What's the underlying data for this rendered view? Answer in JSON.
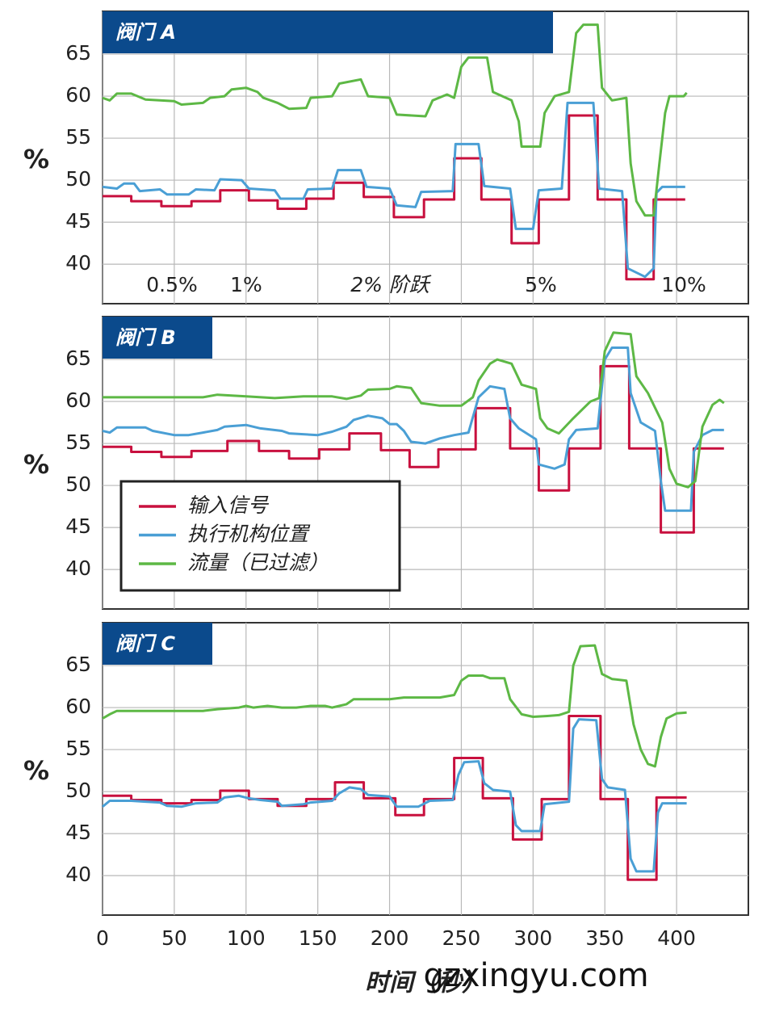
{
  "chart_data": [
    {
      "type": "line",
      "title": "阀门 A",
      "y_label": "%",
      "xlim": [
        0,
        450
      ],
      "ylim": [
        35.3,
        70.1
      ],
      "xticks": [
        0,
        50,
        100,
        150,
        200,
        250,
        300,
        350,
        400
      ],
      "yticks": [
        40,
        45,
        50,
        55,
        60,
        65
      ],
      "grid": true,
      "annotations": [
        "0.5%",
        "1%",
        "2% 阶跃",
        "5%",
        "10%"
      ],
      "series": [
        {
          "color": "#c8103e",
          "x": [
            0,
            20,
            20,
            41,
            41,
            62,
            62,
            82,
            82,
            102,
            102,
            122,
            122,
            142,
            142,
            161,
            161,
            182,
            182,
            203,
            203,
            224,
            224,
            245,
            245,
            264,
            264,
            285,
            285,
            304,
            304,
            325,
            325,
            345,
            345,
            365,
            365,
            384,
            384,
            406
          ],
          "values": [
            48.1,
            48.1,
            47.5,
            47.5,
            46.9,
            46.9,
            47.5,
            47.5,
            48.8,
            48.8,
            47.6,
            47.6,
            46.6,
            46.6,
            47.8,
            47.8,
            49.7,
            49.7,
            48.0,
            48.0,
            45.6,
            45.6,
            47.7,
            47.7,
            52.6,
            52.6,
            47.7,
            47.7,
            42.5,
            42.5,
            47.7,
            47.7,
            57.7,
            57.7,
            47.7,
            47.7,
            38.2,
            38.2,
            47.7,
            47.7
          ]
        },
        {
          "color": "#4a9fd5",
          "x": [
            0,
            10,
            15,
            22,
            26,
            40,
            45,
            60,
            65,
            78,
            82,
            97,
            102,
            120,
            124,
            140,
            143,
            160,
            164,
            180,
            184,
            200,
            205,
            218,
            222,
            244,
            246,
            262,
            266,
            284,
            288,
            300,
            304,
            320,
            324,
            342,
            346,
            362,
            366,
            378,
            384,
            386,
            390,
            406
          ],
          "values": [
            49.2,
            49.0,
            49.6,
            49.6,
            48.7,
            48.9,
            48.3,
            48.3,
            48.9,
            48.8,
            50.1,
            50.0,
            49.0,
            48.8,
            47.8,
            47.8,
            48.9,
            49.0,
            51.2,
            51.2,
            49.2,
            49.0,
            47.0,
            46.8,
            48.6,
            48.7,
            54.3,
            54.3,
            49.3,
            49.0,
            44.2,
            44.2,
            48.8,
            49.0,
            59.2,
            59.2,
            49.0,
            48.7,
            39.5,
            38.5,
            39.5,
            48.5,
            49.2,
            49.2
          ]
        },
        {
          "color": "#5db845",
          "x": [
            0,
            5,
            10,
            20,
            30,
            50,
            55,
            70,
            75,
            85,
            90,
            100,
            108,
            112,
            122,
            130,
            142,
            145,
            160,
            165,
            180,
            185,
            200,
            205,
            225,
            230,
            240,
            245,
            250,
            255,
            268,
            272,
            285,
            290,
            292,
            305,
            308,
            315,
            325,
            330,
            335,
            345,
            348,
            355,
            365,
            368,
            372,
            378,
            384,
            388,
            392,
            395,
            405,
            407
          ],
          "values": [
            59.8,
            59.5,
            60.3,
            60.3,
            59.6,
            59.4,
            59.0,
            59.2,
            59.8,
            60.0,
            60.8,
            61.0,
            60.5,
            59.8,
            59.2,
            58.5,
            58.6,
            59.8,
            60.0,
            61.5,
            62.0,
            60.0,
            59.8,
            57.8,
            57.6,
            59.5,
            60.2,
            59.8,
            63.5,
            64.6,
            64.6,
            60.5,
            59.5,
            57.0,
            54.0,
            54.0,
            58.0,
            60.0,
            60.5,
            67.5,
            68.5,
            68.5,
            61.0,
            59.5,
            59.8,
            52.0,
            47.5,
            45.8,
            45.8,
            52.0,
            58.0,
            60.0,
            60.0,
            60.4
          ]
        }
      ]
    },
    {
      "type": "line",
      "title": "阀门 B",
      "y_label": "%",
      "xlim": [
        0,
        450
      ],
      "ylim": [
        35.3,
        70.1
      ],
      "xticks": [
        0,
        50,
        100,
        150,
        200,
        250,
        300,
        350,
        400
      ],
      "yticks": [
        40,
        45,
        50,
        55,
        60,
        65
      ],
      "grid": true,
      "legend": true,
      "series": [
        {
          "name": "输入信号",
          "color": "#c8103e",
          "x": [
            0,
            20,
            20,
            41,
            41,
            62,
            62,
            87,
            87,
            109,
            109,
            130,
            130,
            151,
            151,
            172,
            172,
            194,
            194,
            214,
            214,
            234,
            234,
            260,
            260,
            284,
            284,
            304,
            304,
            325,
            325,
            347,
            347,
            367,
            367,
            389,
            389,
            412,
            412,
            433
          ],
          "values": [
            54.6,
            54.6,
            54.0,
            54.0,
            53.4,
            53.4,
            54.1,
            54.1,
            55.3,
            55.3,
            54.1,
            54.1,
            53.2,
            53.2,
            54.3,
            54.3,
            56.2,
            56.2,
            54.2,
            54.2,
            52.2,
            52.2,
            54.3,
            54.3,
            59.2,
            59.2,
            54.4,
            54.4,
            49.4,
            49.4,
            54.4,
            54.4,
            64.2,
            64.2,
            54.4,
            54.4,
            44.4,
            44.4,
            54.4,
            54.4
          ]
        },
        {
          "name": "执行机构位置",
          "color": "#4a9fd5",
          "x": [
            0,
            5,
            10,
            30,
            35,
            50,
            60,
            70,
            80,
            85,
            100,
            110,
            125,
            130,
            150,
            160,
            170,
            175,
            185,
            195,
            200,
            205,
            210,
            215,
            225,
            235,
            245,
            255,
            262,
            270,
            280,
            284,
            290,
            302,
            304,
            315,
            322,
            325,
            330,
            345,
            350,
            355,
            366,
            368,
            375,
            385,
            389,
            392,
            410,
            412,
            418,
            425,
            433
          ],
          "values": [
            56.5,
            56.3,
            56.9,
            56.9,
            56.5,
            56.0,
            56.0,
            56.3,
            56.6,
            57.0,
            57.2,
            56.8,
            56.5,
            56.2,
            56.0,
            56.4,
            57.0,
            57.8,
            58.3,
            58.0,
            57.3,
            57.3,
            56.5,
            55.2,
            55.0,
            55.6,
            56.0,
            56.3,
            60.5,
            61.8,
            61.5,
            58.0,
            56.8,
            55.5,
            52.5,
            52.0,
            52.5,
            55.5,
            56.6,
            56.8,
            65.0,
            66.4,
            66.4,
            61.0,
            57.5,
            56.5,
            50.5,
            47.0,
            47.0,
            54.0,
            56.0,
            56.6,
            56.6
          ]
        },
        {
          "name": "流量（已过滤）",
          "color": "#5db845",
          "x": [
            0,
            70,
            80,
            100,
            120,
            140,
            160,
            170,
            180,
            185,
            200,
            205,
            215,
            222,
            235,
            250,
            258,
            262,
            270,
            275,
            285,
            292,
            302,
            305,
            310,
            318,
            328,
            340,
            346,
            350,
            356,
            368,
            372,
            380,
            390,
            395,
            400,
            408,
            413,
            418,
            425,
            430,
            433
          ],
          "values": [
            60.5,
            60.5,
            60.8,
            60.6,
            60.4,
            60.6,
            60.6,
            60.3,
            60.7,
            61.4,
            61.5,
            61.8,
            61.6,
            59.8,
            59.5,
            59.5,
            60.5,
            62.5,
            64.5,
            65.0,
            64.5,
            62.0,
            61.5,
            58.0,
            56.8,
            56.2,
            58.0,
            60.0,
            60.4,
            66.0,
            68.2,
            68.0,
            63.0,
            61.0,
            57.5,
            52.0,
            50.2,
            49.8,
            50.5,
            57.0,
            59.6,
            60.2,
            59.8
          ]
        }
      ]
    },
    {
      "type": "line",
      "title": "阀门 C",
      "y_label": "%",
      "x_label": "时间（秒）",
      "xlim": [
        0,
        450
      ],
      "ylim": [
        35.3,
        70.1
      ],
      "xticks": [
        0,
        50,
        100,
        150,
        200,
        250,
        300,
        350,
        400
      ],
      "yticks": [
        40,
        45,
        50,
        55,
        60,
        65
      ],
      "grid": true,
      "show_xticks": true,
      "series": [
        {
          "color": "#c8103e",
          "x": [
            0,
            20,
            20,
            41,
            41,
            62,
            62,
            82,
            82,
            102,
            102,
            122,
            122,
            142,
            142,
            162,
            162,
            182,
            182,
            204,
            204,
            224,
            224,
            245,
            245,
            265,
            265,
            286,
            286,
            306,
            306,
            325,
            325,
            347,
            347,
            366,
            366,
            386,
            386,
            407
          ],
          "values": [
            49.5,
            49.5,
            49.0,
            49.0,
            48.6,
            48.6,
            49.0,
            49.0,
            50.1,
            50.1,
            49.1,
            49.1,
            48.3,
            48.3,
            49.1,
            49.1,
            51.1,
            51.1,
            49.2,
            49.2,
            47.2,
            47.2,
            49.1,
            49.1,
            54.0,
            54.0,
            49.2,
            49.2,
            44.3,
            44.3,
            49.1,
            49.1,
            59.0,
            59.0,
            49.1,
            49.1,
            39.5,
            39.5,
            49.3,
            49.3
          ]
        },
        {
          "color": "#4a9fd5",
          "x": [
            0,
            5,
            20,
            30,
            40,
            45,
            55,
            60,
            65,
            80,
            85,
            95,
            102,
            110,
            122,
            125,
            140,
            145,
            160,
            165,
            172,
            180,
            185,
            200,
            205,
            220,
            228,
            244,
            248,
            252,
            262,
            266,
            272,
            284,
            288,
            292,
            305,
            308,
            325,
            328,
            332,
            344,
            348,
            352,
            364,
            368,
            372,
            384,
            387,
            390,
            407
          ],
          "values": [
            48.2,
            48.9,
            48.9,
            48.8,
            48.7,
            48.3,
            48.2,
            48.4,
            48.6,
            48.7,
            49.3,
            49.5,
            49.2,
            49.0,
            48.8,
            48.3,
            48.5,
            48.7,
            48.9,
            49.8,
            50.5,
            50.3,
            49.6,
            49.4,
            48.2,
            48.2,
            48.9,
            49.0,
            52.0,
            53.5,
            53.6,
            51.0,
            50.2,
            50.0,
            46.0,
            45.3,
            45.3,
            48.5,
            48.8,
            57.5,
            58.6,
            58.5,
            51.5,
            50.5,
            50.2,
            42.0,
            40.5,
            40.5,
            47.5,
            48.6,
            48.6
          ]
        },
        {
          "color": "#5db845",
          "x": [
            0,
            5,
            10,
            40,
            70,
            80,
            95,
            100,
            105,
            115,
            125,
            135,
            145,
            155,
            160,
            165,
            170,
            175,
            200,
            210,
            235,
            245,
            250,
            255,
            265,
            270,
            280,
            284,
            292,
            300,
            310,
            318,
            325,
            328,
            333,
            343,
            348,
            355,
            365,
            370,
            375,
            380,
            385,
            389,
            393,
            400,
            407
          ],
          "values": [
            58.7,
            59.2,
            59.6,
            59.6,
            59.6,
            59.8,
            60.0,
            60.2,
            60.0,
            60.2,
            60.0,
            60.0,
            60.2,
            60.2,
            60.0,
            60.2,
            60.4,
            61.0,
            61.0,
            61.2,
            61.2,
            61.5,
            63.2,
            63.8,
            63.8,
            63.5,
            63.5,
            61.0,
            59.2,
            58.9,
            59.0,
            59.1,
            59.5,
            65.0,
            67.3,
            67.4,
            64.0,
            63.4,
            63.2,
            58.0,
            55.0,
            53.3,
            53.0,
            56.5,
            58.7,
            59.3,
            59.4
          ]
        }
      ]
    }
  ],
  "watermark": "gzxingyu.com"
}
